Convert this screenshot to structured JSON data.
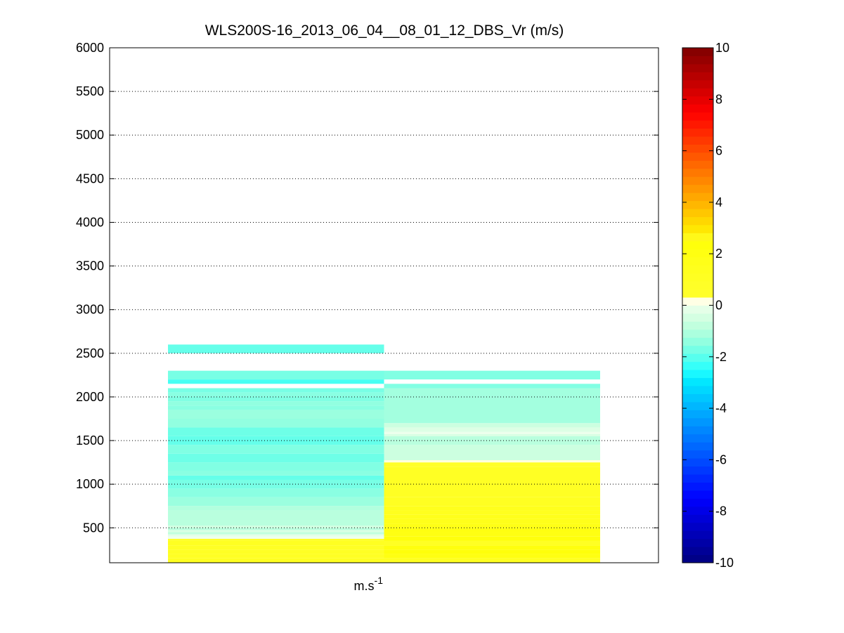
{
  "chart_data": {
    "type": "heatmap",
    "title": "WLS200S-16_2013_06_04__08_01_12_DBS_Vr (m/s)",
    "xlabel_base": "m.s",
    "xlabel_exp": "-1",
    "ylabel": "",
    "ylim": [
      100,
      6000
    ],
    "yticks": [
      500,
      1000,
      1500,
      2000,
      2500,
      3000,
      3500,
      4000,
      4500,
      5000,
      5500,
      6000
    ],
    "grid": "y-dotted",
    "colorbar": {
      "placement": "right",
      "range": [
        -10,
        10
      ],
      "ticks": [
        -10,
        -8,
        -6,
        -4,
        -2,
        0,
        2,
        4,
        6,
        8,
        10
      ]
    },
    "columns": [
      {
        "x_range": [
          0.5,
          1.5
        ],
        "cells": [
          {
            "z0": 100,
            "z1": 150,
            "v": 1.2
          },
          {
            "z0": 150,
            "z1": 200,
            "v": 0.9
          },
          {
            "z0": 200,
            "z1": 250,
            "v": 1.0
          },
          {
            "z0": 250,
            "z1": 300,
            "v": 0.9
          },
          {
            "z0": 300,
            "z1": 350,
            "v": 1.1
          },
          {
            "z0": 350,
            "z1": 375,
            "v": 0.7
          },
          {
            "z0": 375,
            "z1": 400,
            "v": 0.0
          },
          {
            "z0": 400,
            "z1": 425,
            "v": -0.2
          },
          {
            "z0": 425,
            "z1": 450,
            "v": -0.8
          },
          {
            "z0": 450,
            "z1": 475,
            "v": -0.4
          },
          {
            "z0": 475,
            "z1": 500,
            "v": -0.9
          },
          {
            "z0": 500,
            "z1": 525,
            "v": -0.5
          },
          {
            "z0": 525,
            "z1": 700,
            "v": -0.9
          },
          {
            "z0": 700,
            "z1": 750,
            "v": -1.0
          },
          {
            "z0": 750,
            "z1": 850,
            "v": -1.3
          },
          {
            "z0": 850,
            "z1": 950,
            "v": -1.5
          },
          {
            "z0": 950,
            "z1": 1050,
            "v": -1.7
          },
          {
            "z0": 1050,
            "z1": 1100,
            "v": -1.9
          },
          {
            "z0": 1100,
            "z1": 1150,
            "v": -1.5
          },
          {
            "z0": 1150,
            "z1": 1250,
            "v": -1.6
          },
          {
            "z0": 1250,
            "z1": 1350,
            "v": -1.8
          },
          {
            "z0": 1350,
            "z1": 1450,
            "v": -1.6
          },
          {
            "z0": 1450,
            "z1": 1550,
            "v": -1.9
          },
          {
            "z0": 1550,
            "z1": 1650,
            "v": -1.8
          },
          {
            "z0": 1650,
            "z1": 1750,
            "v": -1.4
          },
          {
            "z0": 1750,
            "z1": 1850,
            "v": -1.3
          },
          {
            "z0": 1850,
            "z1": 1900,
            "v": -1.5
          },
          {
            "z0": 1900,
            "z1": 1950,
            "v": -1.4
          },
          {
            "z0": 1950,
            "z1": 2000,
            "v": -1.6
          },
          {
            "z0": 2000,
            "z1": 2050,
            "v": -1.5
          },
          {
            "z0": 2050,
            "z1": 2100,
            "v": -1.7
          },
          {
            "z0": 2150,
            "z1": 2200,
            "v": -2.2
          },
          {
            "z0": 2200,
            "z1": 2300,
            "v": -1.7
          },
          {
            "z0": 2500,
            "z1": 2600,
            "v": -1.9
          }
        ]
      },
      {
        "x_range": [
          1.5,
          2.5
        ],
        "cells": [
          {
            "z0": 100,
            "z1": 150,
            "v": 1.2
          },
          {
            "z0": 150,
            "z1": 200,
            "v": 2.0
          },
          {
            "z0": 200,
            "z1": 250,
            "v": 2.4
          },
          {
            "z0": 250,
            "z1": 300,
            "v": 2.2
          },
          {
            "z0": 300,
            "z1": 350,
            "v": 2.5
          },
          {
            "z0": 350,
            "z1": 400,
            "v": 2.3
          },
          {
            "z0": 400,
            "z1": 450,
            "v": 2.0
          },
          {
            "z0": 450,
            "z1": 500,
            "v": 2.1
          },
          {
            "z0": 500,
            "z1": 550,
            "v": 1.8
          },
          {
            "z0": 550,
            "z1": 600,
            "v": 1.6
          },
          {
            "z0": 600,
            "z1": 650,
            "v": 1.5
          },
          {
            "z0": 650,
            "z1": 700,
            "v": 1.3
          },
          {
            "z0": 700,
            "z1": 750,
            "v": 1.4
          },
          {
            "z0": 750,
            "z1": 850,
            "v": 1.1
          },
          {
            "z0": 850,
            "z1": 1200,
            "v": 1.0
          },
          {
            "z0": 1200,
            "z1": 1250,
            "v": 0.6
          },
          {
            "z0": 1250,
            "z1": 1275,
            "v": 0.3
          },
          {
            "z0": 1275,
            "z1": 1450,
            "v": -0.6
          },
          {
            "z0": 1450,
            "z1": 1550,
            "v": -0.9
          },
          {
            "z0": 1550,
            "z1": 1575,
            "v": -0.4
          },
          {
            "z0": 1575,
            "z1": 1600,
            "v": 0.0
          },
          {
            "z0": 1600,
            "z1": 1650,
            "v": -0.3
          },
          {
            "z0": 1650,
            "z1": 1700,
            "v": -0.6
          },
          {
            "z0": 1700,
            "z1": 2100,
            "v": -1.2
          },
          {
            "z0": 2100,
            "z1": 2150,
            "v": -1.6
          },
          {
            "z0": 2200,
            "z1": 2300,
            "v": -1.6
          }
        ]
      }
    ]
  }
}
